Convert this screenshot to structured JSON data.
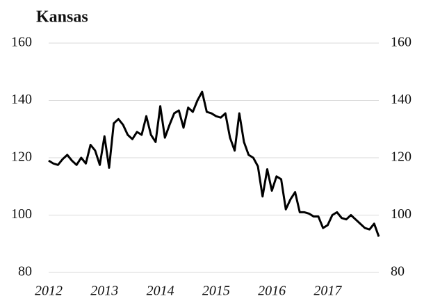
{
  "chart_data": {
    "type": "line",
    "title": "Kansas",
    "categories": [
      "2012",
      null,
      null,
      null,
      null,
      null,
      null,
      null,
      null,
      null,
      null,
      null,
      "2013",
      null,
      null,
      null,
      null,
      null,
      null,
      null,
      null,
      null,
      null,
      null,
      "2014",
      null,
      null,
      null,
      null,
      null,
      null,
      null,
      null,
      null,
      null,
      null,
      "2015",
      null,
      null,
      null,
      null,
      null,
      null,
      null,
      null,
      null,
      null,
      null,
      "2016",
      null,
      null,
      null,
      null,
      null,
      null,
      null,
      null,
      null,
      null,
      null,
      "2017",
      null,
      null,
      null,
      null,
      null,
      null,
      null,
      null,
      null,
      null,
      null
    ],
    "series": [
      {
        "color": "#000000",
        "values": [
          119,
          118,
          117.5,
          119.5,
          121,
          119,
          117.5,
          120,
          118,
          124.5,
          122.5,
          117.5,
          127.5,
          116.5,
          132,
          133.5,
          131.5,
          128,
          126.5,
          129,
          128,
          134.5,
          128,
          125.5,
          138,
          127,
          131.5,
          135.5,
          136.5,
          130.5,
          137.5,
          136,
          140,
          143,
          136,
          135.5,
          134.5,
          134,
          135.5,
          127,
          122.5,
          135.5,
          125.5,
          121,
          120,
          117,
          106.5,
          116,
          108.5,
          113.5,
          112.5,
          102,
          105.5,
          108,
          101,
          101,
          100.5,
          99.5,
          99.5,
          95.5,
          96.5,
          100,
          101,
          99,
          98.5,
          100,
          98.5,
          97,
          95.5,
          95,
          97,
          92.5
        ]
      }
    ],
    "ylim": [
      80,
      160
    ],
    "yticks": [
      80,
      100,
      120,
      140,
      160
    ],
    "grid": true
  }
}
